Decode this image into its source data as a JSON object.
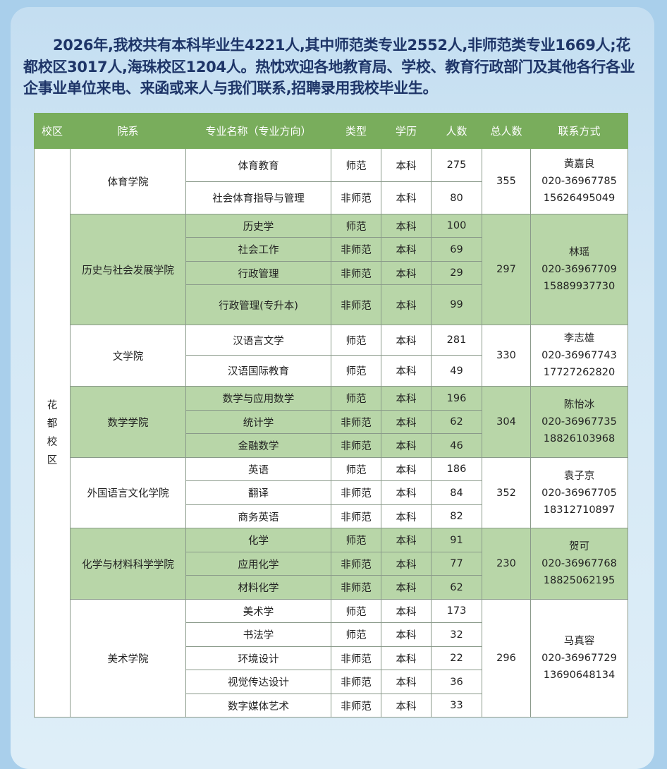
{
  "intro": "2026年,我校共有本科毕业生4221人,其中师范类专业2552人,非师范类专业1669人;花都校区3017人,海珠校区1204人。热忱欢迎各地教育局、学校、教育行政部门及其他各行各业企事业单位来电、来函或来人与我们联系,招聘录用我校毕业生。",
  "colors": {
    "header": "#79ad5c",
    "shaded_row": "#b8d6a8",
    "intro_text": "#1e3568"
  },
  "table": {
    "headers": [
      "校区",
      "院系",
      "专业名称（专业方向）",
      "类型",
      "学历",
      "人数",
      "总人数",
      "联系方式"
    ],
    "campus": "花\n都\n校\n区",
    "departments": [
      {
        "name": "体育学院",
        "total": "355",
        "shaded": false,
        "contact": {
          "name": "黄嘉良",
          "phone": "020-36967785",
          "mobile": "15626495049"
        },
        "majors": [
          {
            "name": "体育教育",
            "type": "师范",
            "edu": "本科",
            "count": "275"
          },
          {
            "name": "社会体育指导与管理",
            "type": "非师范",
            "edu": "本科",
            "count": "80"
          }
        ]
      },
      {
        "name": "历史与社会发展学院",
        "total": "297",
        "shaded": true,
        "contact": {
          "name": "林瑶",
          "phone": "020-36967709",
          "mobile": "15889937730"
        },
        "majors": [
          {
            "name": "历史学",
            "type": "师范",
            "edu": "本科",
            "count": "100"
          },
          {
            "name": "社会工作",
            "type": "非师范",
            "edu": "本科",
            "count": "69"
          },
          {
            "name": "行政管理",
            "type": "非师范",
            "edu": "本科",
            "count": "29"
          },
          {
            "name": "行政管理(专升本)",
            "type": "非师范",
            "edu": "本科",
            "count": "99"
          }
        ]
      },
      {
        "name": "文学院",
        "total": "330",
        "shaded": false,
        "contact": {
          "name": "李志雄",
          "phone": "020-36967743",
          "mobile": "17727262820"
        },
        "majors": [
          {
            "name": "汉语言文学",
            "type": "师范",
            "edu": "本科",
            "count": "281"
          },
          {
            "name": "汉语国际教育",
            "type": "师范",
            "edu": "本科",
            "count": "49"
          }
        ]
      },
      {
        "name": "数学学院",
        "total": "304",
        "shaded": true,
        "contact": {
          "name": "陈怡冰",
          "phone": "020-36967735",
          "mobile": "18826103968"
        },
        "majors": [
          {
            "name": "数学与应用数学",
            "type": "师范",
            "edu": "本科",
            "count": "196"
          },
          {
            "name": "统计学",
            "type": "非师范",
            "edu": "本科",
            "count": "62"
          },
          {
            "name": "金融数学",
            "type": "非师范",
            "edu": "本科",
            "count": "46"
          }
        ]
      },
      {
        "name": "外国语言文化学院",
        "total": "352",
        "shaded": false,
        "contact": {
          "name": "袁子京",
          "phone": "020-36967705",
          "mobile": "18312710897"
        },
        "majors": [
          {
            "name": "英语",
            "type": "师范",
            "edu": "本科",
            "count": "186"
          },
          {
            "name": "翻译",
            "type": "非师范",
            "edu": "本科",
            "count": "84"
          },
          {
            "name": "商务英语",
            "type": "非师范",
            "edu": "本科",
            "count": "82"
          }
        ]
      },
      {
        "name": "化学与材料科学学院",
        "total": "230",
        "shaded": true,
        "contact": {
          "name": "贺可",
          "phone": "020-36967768",
          "mobile": "18825062195"
        },
        "majors": [
          {
            "name": "化学",
            "type": "师范",
            "edu": "本科",
            "count": "91"
          },
          {
            "name": "应用化学",
            "type": "非师范",
            "edu": "本科",
            "count": "77"
          },
          {
            "name": "材料化学",
            "type": "非师范",
            "edu": "本科",
            "count": "62"
          }
        ]
      },
      {
        "name": "美术学院",
        "total": "296",
        "shaded": false,
        "contact": {
          "name": "马真容",
          "phone": "020-36967729",
          "mobile": "13690648134"
        },
        "majors": [
          {
            "name": "美术学",
            "type": "师范",
            "edu": "本科",
            "count": "173"
          },
          {
            "name": "书法学",
            "type": "师范",
            "edu": "本科",
            "count": "32"
          },
          {
            "name": "环境设计",
            "type": "非师范",
            "edu": "本科",
            "count": "22"
          },
          {
            "name": "视觉传达设计",
            "type": "非师范",
            "edu": "本科",
            "count": "36"
          },
          {
            "name": "数字媒体艺术",
            "type": "非师范",
            "edu": "本科",
            "count": "33"
          }
        ]
      }
    ]
  }
}
